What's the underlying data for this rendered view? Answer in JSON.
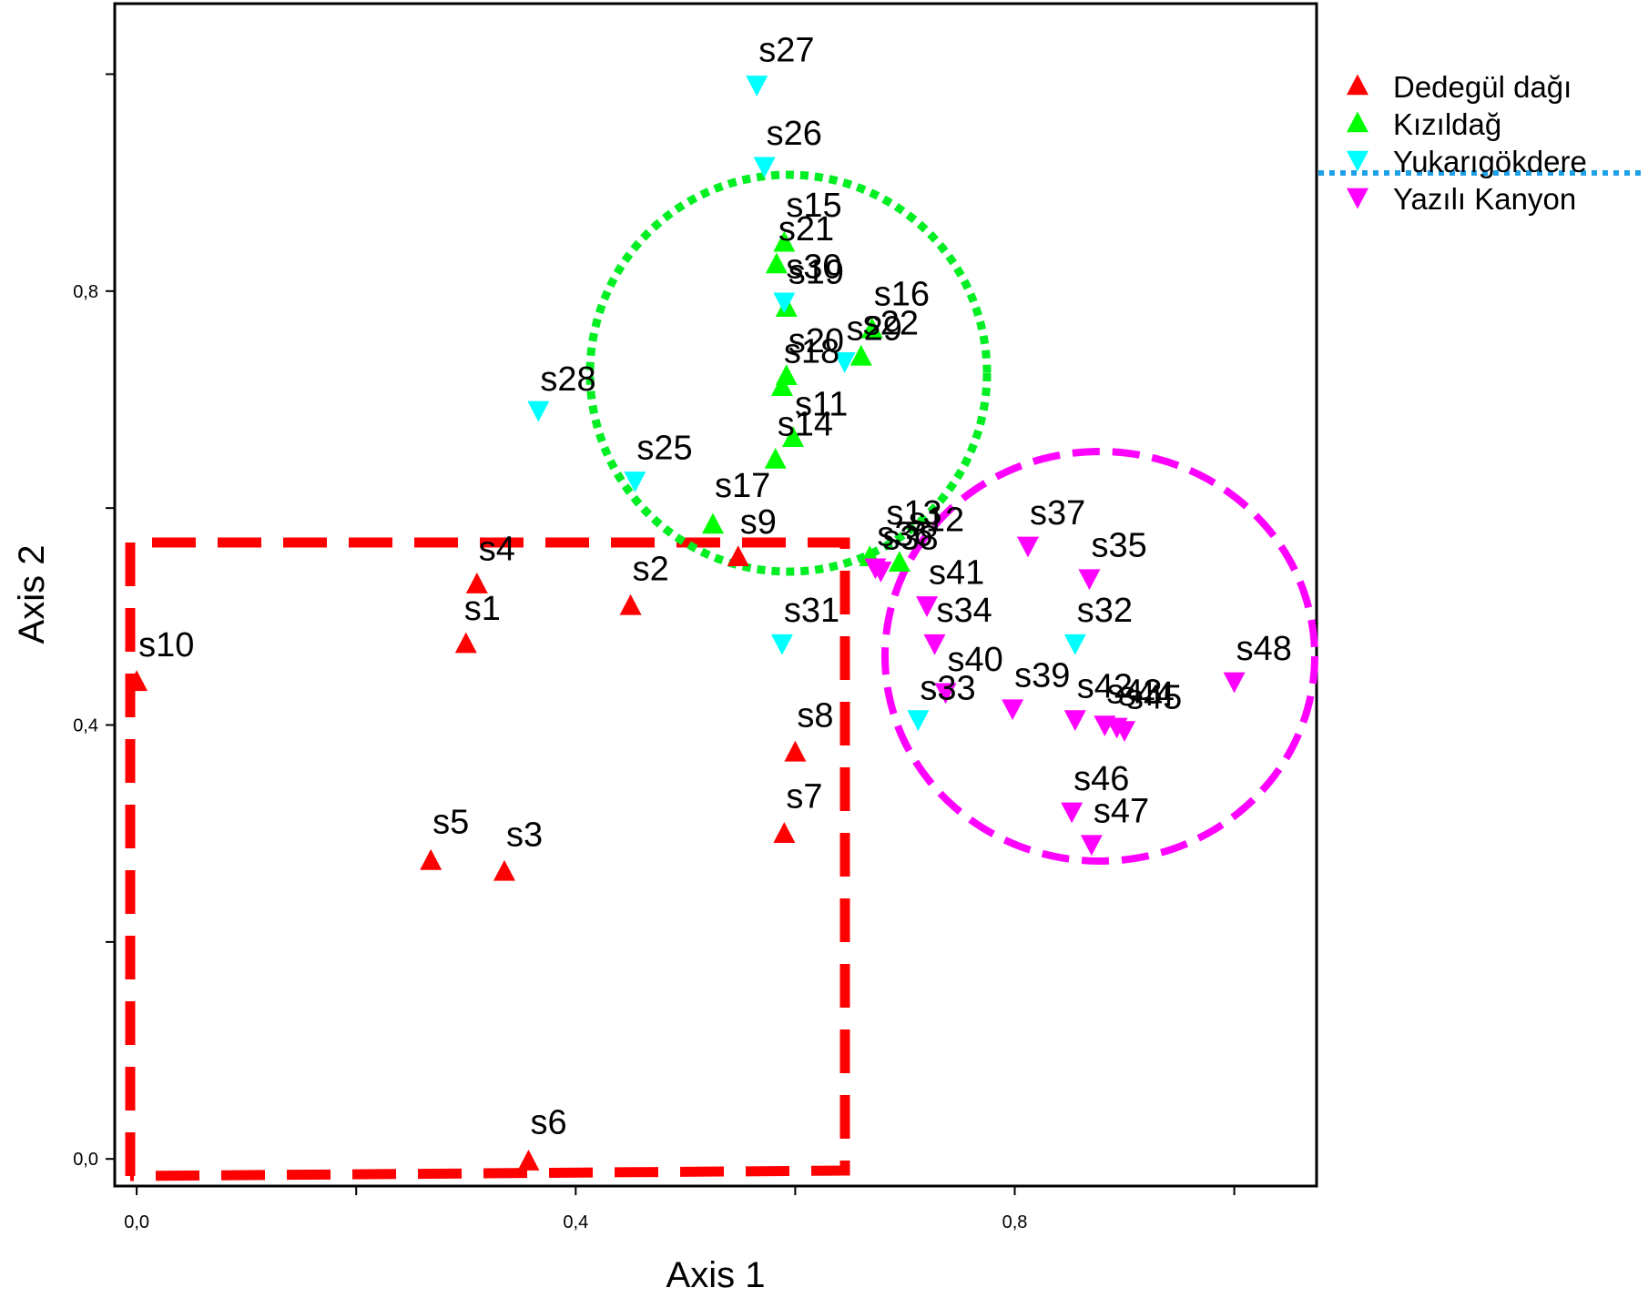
{
  "chart_data": {
    "type": "scatter",
    "xlabel": "Axis 1",
    "ylabel": "Axis 2",
    "xlim": [
      -0.02,
      1.075
    ],
    "ylim": [
      -0.025,
      1.065
    ],
    "xticks": [
      0.0,
      0.2,
      0.4,
      0.6,
      0.8,
      1.0
    ],
    "xtick_labels": [
      "0,0",
      "",
      "0,4",
      "",
      "0,8",
      ""
    ],
    "yticks": [
      0.0,
      0.2,
      0.4,
      0.6,
      0.8,
      1.0
    ],
    "ytick_labels": [
      "0,0",
      "",
      "0,4",
      "",
      "0,8",
      ""
    ],
    "legend_position": "top-right, outside plot",
    "grid": false,
    "series": [
      {
        "name": "Dedegül dağı",
        "color": "#ff0000",
        "marker": "triangle-up",
        "points": [
          {
            "label": "s1",
            "x": 0.3,
            "y": 0.475
          },
          {
            "label": "s2",
            "x": 0.45,
            "y": 0.51
          },
          {
            "label": "s3",
            "x": 0.335,
            "y": 0.265
          },
          {
            "label": "s4",
            "x": 0.31,
            "y": 0.53
          },
          {
            "label": "s5",
            "x": 0.268,
            "y": 0.275
          },
          {
            "label": "s6",
            "x": 0.357,
            "y": -0.002
          },
          {
            "label": "s7",
            "x": 0.59,
            "y": 0.3
          },
          {
            "label": "s8",
            "x": 0.6,
            "y": 0.375
          },
          {
            "label": "s9",
            "x": 0.548,
            "y": 0.555
          },
          {
            "label": "s10",
            "x": 0.0,
            "y": 0.44
          }
        ]
      },
      {
        "name": "Kızıldağ",
        "color": "#00ff00",
        "marker": "triangle-up",
        "points": [
          {
            "label": "s11",
            "x": 0.598,
            "y": 0.665
          },
          {
            "label": "s12",
            "x": 0.695,
            "y": 0.55
          },
          {
            "label": "s13",
            "x": 0.668,
            "y": 0.555
          },
          {
            "label": "s14",
            "x": 0.582,
            "y": 0.645
          },
          {
            "label": "s15",
            "x": 0.59,
            "y": 0.845
          },
          {
            "label": "s16",
            "x": 0.67,
            "y": 0.765
          },
          {
            "label": "s17",
            "x": 0.525,
            "y": 0.585
          },
          {
            "label": "s18",
            "x": 0.588,
            "y": 0.712
          },
          {
            "label": "s19",
            "x": 0.592,
            "y": 0.785
          },
          {
            "label": "s20",
            "x": 0.592,
            "y": 0.722
          },
          {
            "label": "s21",
            "x": 0.583,
            "y": 0.825
          },
          {
            "label": "s22",
            "x": 0.66,
            "y": 0.74
          }
        ]
      },
      {
        "name": "Yukarıgökdere",
        "color": "#00ffff",
        "marker": "triangle-down",
        "points": [
          {
            "label": "s25",
            "x": 0.454,
            "y": 0.625
          },
          {
            "label": "s26",
            "x": 0.572,
            "y": 0.915
          },
          {
            "label": "s27",
            "x": 0.565,
            "y": 0.99
          },
          {
            "label": "s28",
            "x": 0.366,
            "y": 0.69
          },
          {
            "label": "s29",
            "x": 0.645,
            "y": 0.735
          },
          {
            "label": "s30",
            "x": 0.59,
            "y": 0.79
          },
          {
            "label": "s31",
            "x": 0.588,
            "y": 0.475
          },
          {
            "label": "s32",
            "x": 0.855,
            "y": 0.475
          },
          {
            "label": "s33",
            "x": 0.712,
            "y": 0.405
          }
        ]
      },
      {
        "name": "Yazılı Kanyon",
        "color": "#ff00ff",
        "marker": "triangle-down",
        "points": [
          {
            "label": "s34",
            "x": 0.727,
            "y": 0.475
          },
          {
            "label": "s35",
            "x": 0.868,
            "y": 0.535
          },
          {
            "label": "s36",
            "x": 0.673,
            "y": 0.545
          },
          {
            "label": "s37",
            "x": 0.812,
            "y": 0.565
          },
          {
            "label": "s38",
            "x": 0.678,
            "y": 0.542
          },
          {
            "label": "s39",
            "x": 0.798,
            "y": 0.415
          },
          {
            "label": "s40",
            "x": 0.737,
            "y": 0.43
          },
          {
            "label": "s41",
            "x": 0.72,
            "y": 0.51
          },
          {
            "label": "s42",
            "x": 0.855,
            "y": 0.405
          },
          {
            "label": "s43",
            "x": 0.882,
            "y": 0.4
          },
          {
            "label": "s44",
            "x": 0.893,
            "y": 0.398
          },
          {
            "label": "s45",
            "x": 0.9,
            "y": 0.395
          },
          {
            "label": "s46",
            "x": 0.852,
            "y": 0.32
          },
          {
            "label": "s47",
            "x": 0.87,
            "y": 0.29
          },
          {
            "label": "s48",
            "x": 1.0,
            "y": 0.44
          }
        ]
      }
    ]
  },
  "labels": {
    "s1": {
      "dx": -2,
      "dy": -26
    },
    "s2": {
      "dx": 2,
      "dy": -28
    },
    "s3": {
      "dx": 2,
      "dy": -28
    },
    "s4": {
      "dx": 2,
      "dy": -26
    },
    "s5": {
      "dx": 2,
      "dy": -30
    },
    "s6": {
      "dx": 2,
      "dy": -30
    },
    "s7": {
      "dx": 2,
      "dy": -28
    },
    "s8": {
      "dx": 2,
      "dy": -28
    },
    "s9": {
      "dx": 2,
      "dy": -26
    },
    "s10": {
      "dx": 2,
      "dy": -28
    },
    "s11": {
      "dx": 2,
      "dy": -24
    },
    "s12": {
      "dx": 10,
      "dy": -34
    },
    "s13": {
      "dx": 18,
      "dy": -36
    },
    "s14": {
      "dx": 2,
      "dy": -26
    },
    "s15": {
      "dx": 2,
      "dy": -28
    },
    "s16": {
      "dx": 2,
      "dy": -26
    },
    "s17": {
      "dx": 2,
      "dy": -30
    },
    "s18": {
      "dx": 2,
      "dy": -26
    },
    "s19": {
      "dx": 2,
      "dy": -26
    },
    "s20": {
      "dx": 2,
      "dy": -26
    },
    "s21": {
      "dx": 2,
      "dy": -26
    },
    "s22": {
      "dx": 2,
      "dy": -24
    },
    "s25": {
      "dx": 2,
      "dy": -24
    },
    "s26": {
      "dx": 2,
      "dy": -24
    },
    "s27": {
      "dx": 2,
      "dy": -26
    },
    "s28": {
      "dx": 2,
      "dy": -22
    },
    "s29": {
      "dx": 2,
      "dy": -24
    },
    "s30": {
      "dx": 2,
      "dy": -26
    },
    "s31": {
      "dx": 2,
      "dy": -24
    },
    "s32": {
      "dx": 2,
      "dy": -24
    },
    "s33": {
      "dx": 2,
      "dy": -22
    },
    "s34": {
      "dx": 2,
      "dy": -24
    },
    "s35": {
      "dx": 2,
      "dy": -24
    },
    "s36": {
      "dx": 2,
      "dy": -24
    },
    "s37": {
      "dx": 2,
      "dy": -24
    },
    "s38": {
      "dx": 2,
      "dy": -24
    },
    "s39": {
      "dx": 2,
      "dy": -24
    },
    "s40": {
      "dx": 2,
      "dy": -24
    },
    "s41": {
      "dx": 2,
      "dy": -24
    },
    "s42": {
      "dx": 2,
      "dy": -24
    },
    "s43": {
      "dx": 2,
      "dy": -24
    },
    "s44": {
      "dx": 2,
      "dy": -24
    },
    "s45": {
      "dx": 2,
      "dy": -24
    },
    "s46": {
      "dx": 2,
      "dy": -24
    },
    "s47": {
      "dx": 2,
      "dy": -24
    },
    "s48": {
      "dx": 2,
      "dy": -24
    }
  },
  "annotations": {
    "red_box_color": "#ff0000",
    "green_circle_color": "#00ee22",
    "magenta_circle_color": "#ff00ff",
    "blue_dotted_color": "#1ea0e6"
  }
}
